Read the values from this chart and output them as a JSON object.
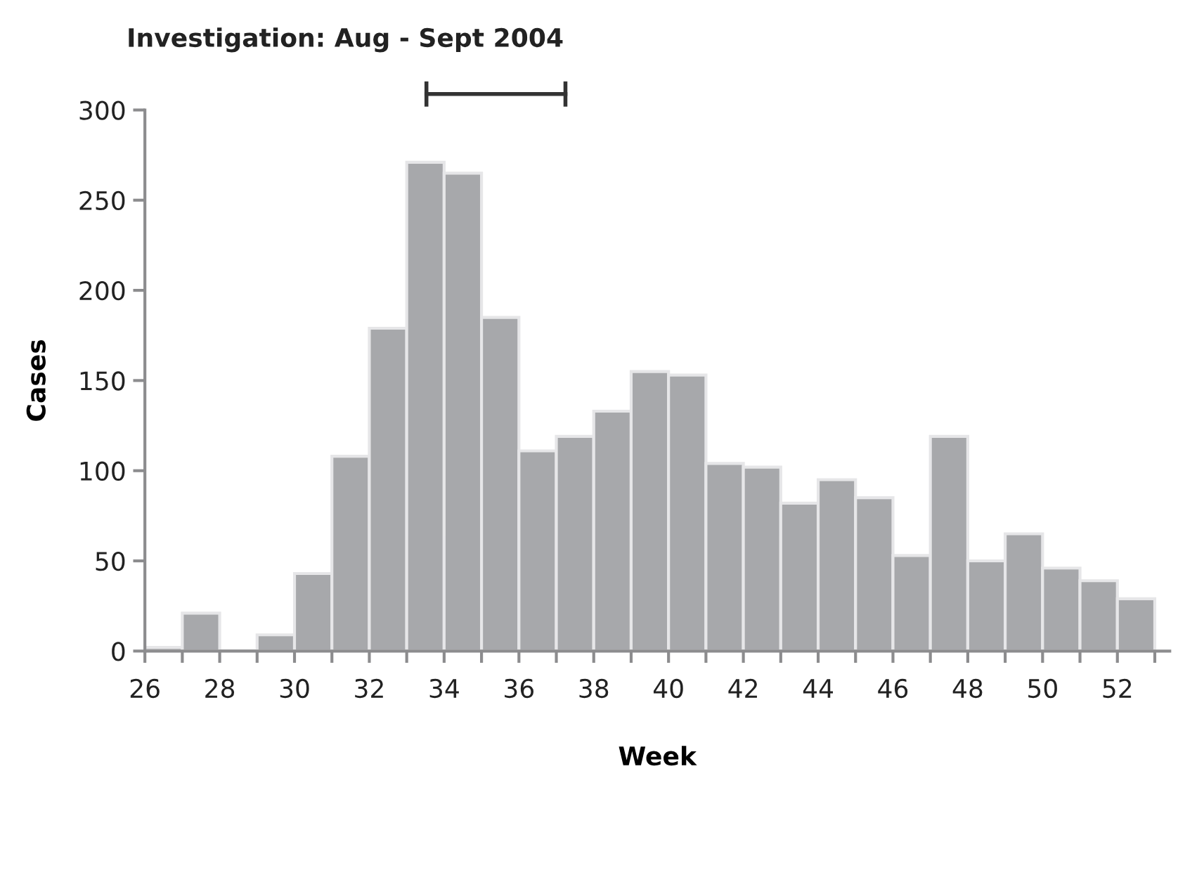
{
  "chart_data": {
    "type": "histogram",
    "xlabel": "Week",
    "ylabel": "Cases",
    "color": "#a7a8ab",
    "bins": [
      26,
      27,
      28,
      29,
      30,
      31,
      32,
      33,
      34,
      35,
      36,
      37,
      38,
      39,
      40,
      41,
      42,
      43,
      44,
      45,
      46,
      47,
      48,
      49,
      50,
      51,
      52,
      53
    ],
    "values": [
      2,
      21,
      0,
      9,
      43,
      108,
      179,
      271,
      265,
      185,
      111,
      119,
      133,
      155,
      153,
      104,
      102,
      82,
      95,
      85,
      53,
      119,
      50,
      65,
      46,
      39,
      29
    ],
    "xlim": [
      26,
      53.4
    ],
    "xticks": [
      26,
      {
        "value": 27,
        "label": null
      },
      28,
      {
        "value": 29,
        "label": null
      },
      30,
      {
        "value": 31,
        "label": null
      },
      32,
      {
        "value": 33,
        "label": null
      },
      34,
      {
        "value": 35,
        "label": null
      },
      36,
      {
        "value": 37,
        "label": null
      },
      38,
      {
        "value": 39,
        "label": null
      },
      40,
      {
        "value": 41,
        "label": null
      },
      42,
      {
        "value": 43,
        "label": null
      },
      44,
      {
        "value": 45,
        "label": null
      },
      46,
      {
        "value": 47,
        "label": null
      },
      48,
      {
        "value": 49,
        "label": null
      },
      50,
      {
        "value": 51,
        "label": null
      },
      52,
      {
        "value": 53,
        "label": null
      }
    ],
    "ylim": [
      0,
      300
    ],
    "yticks": [
      0,
      50,
      100,
      150,
      200,
      250,
      300
    ],
    "annotations": [
      "Investigation: Aug - Sept 2004"
    ],
    "grid": false,
    "legend": false
  }
}
